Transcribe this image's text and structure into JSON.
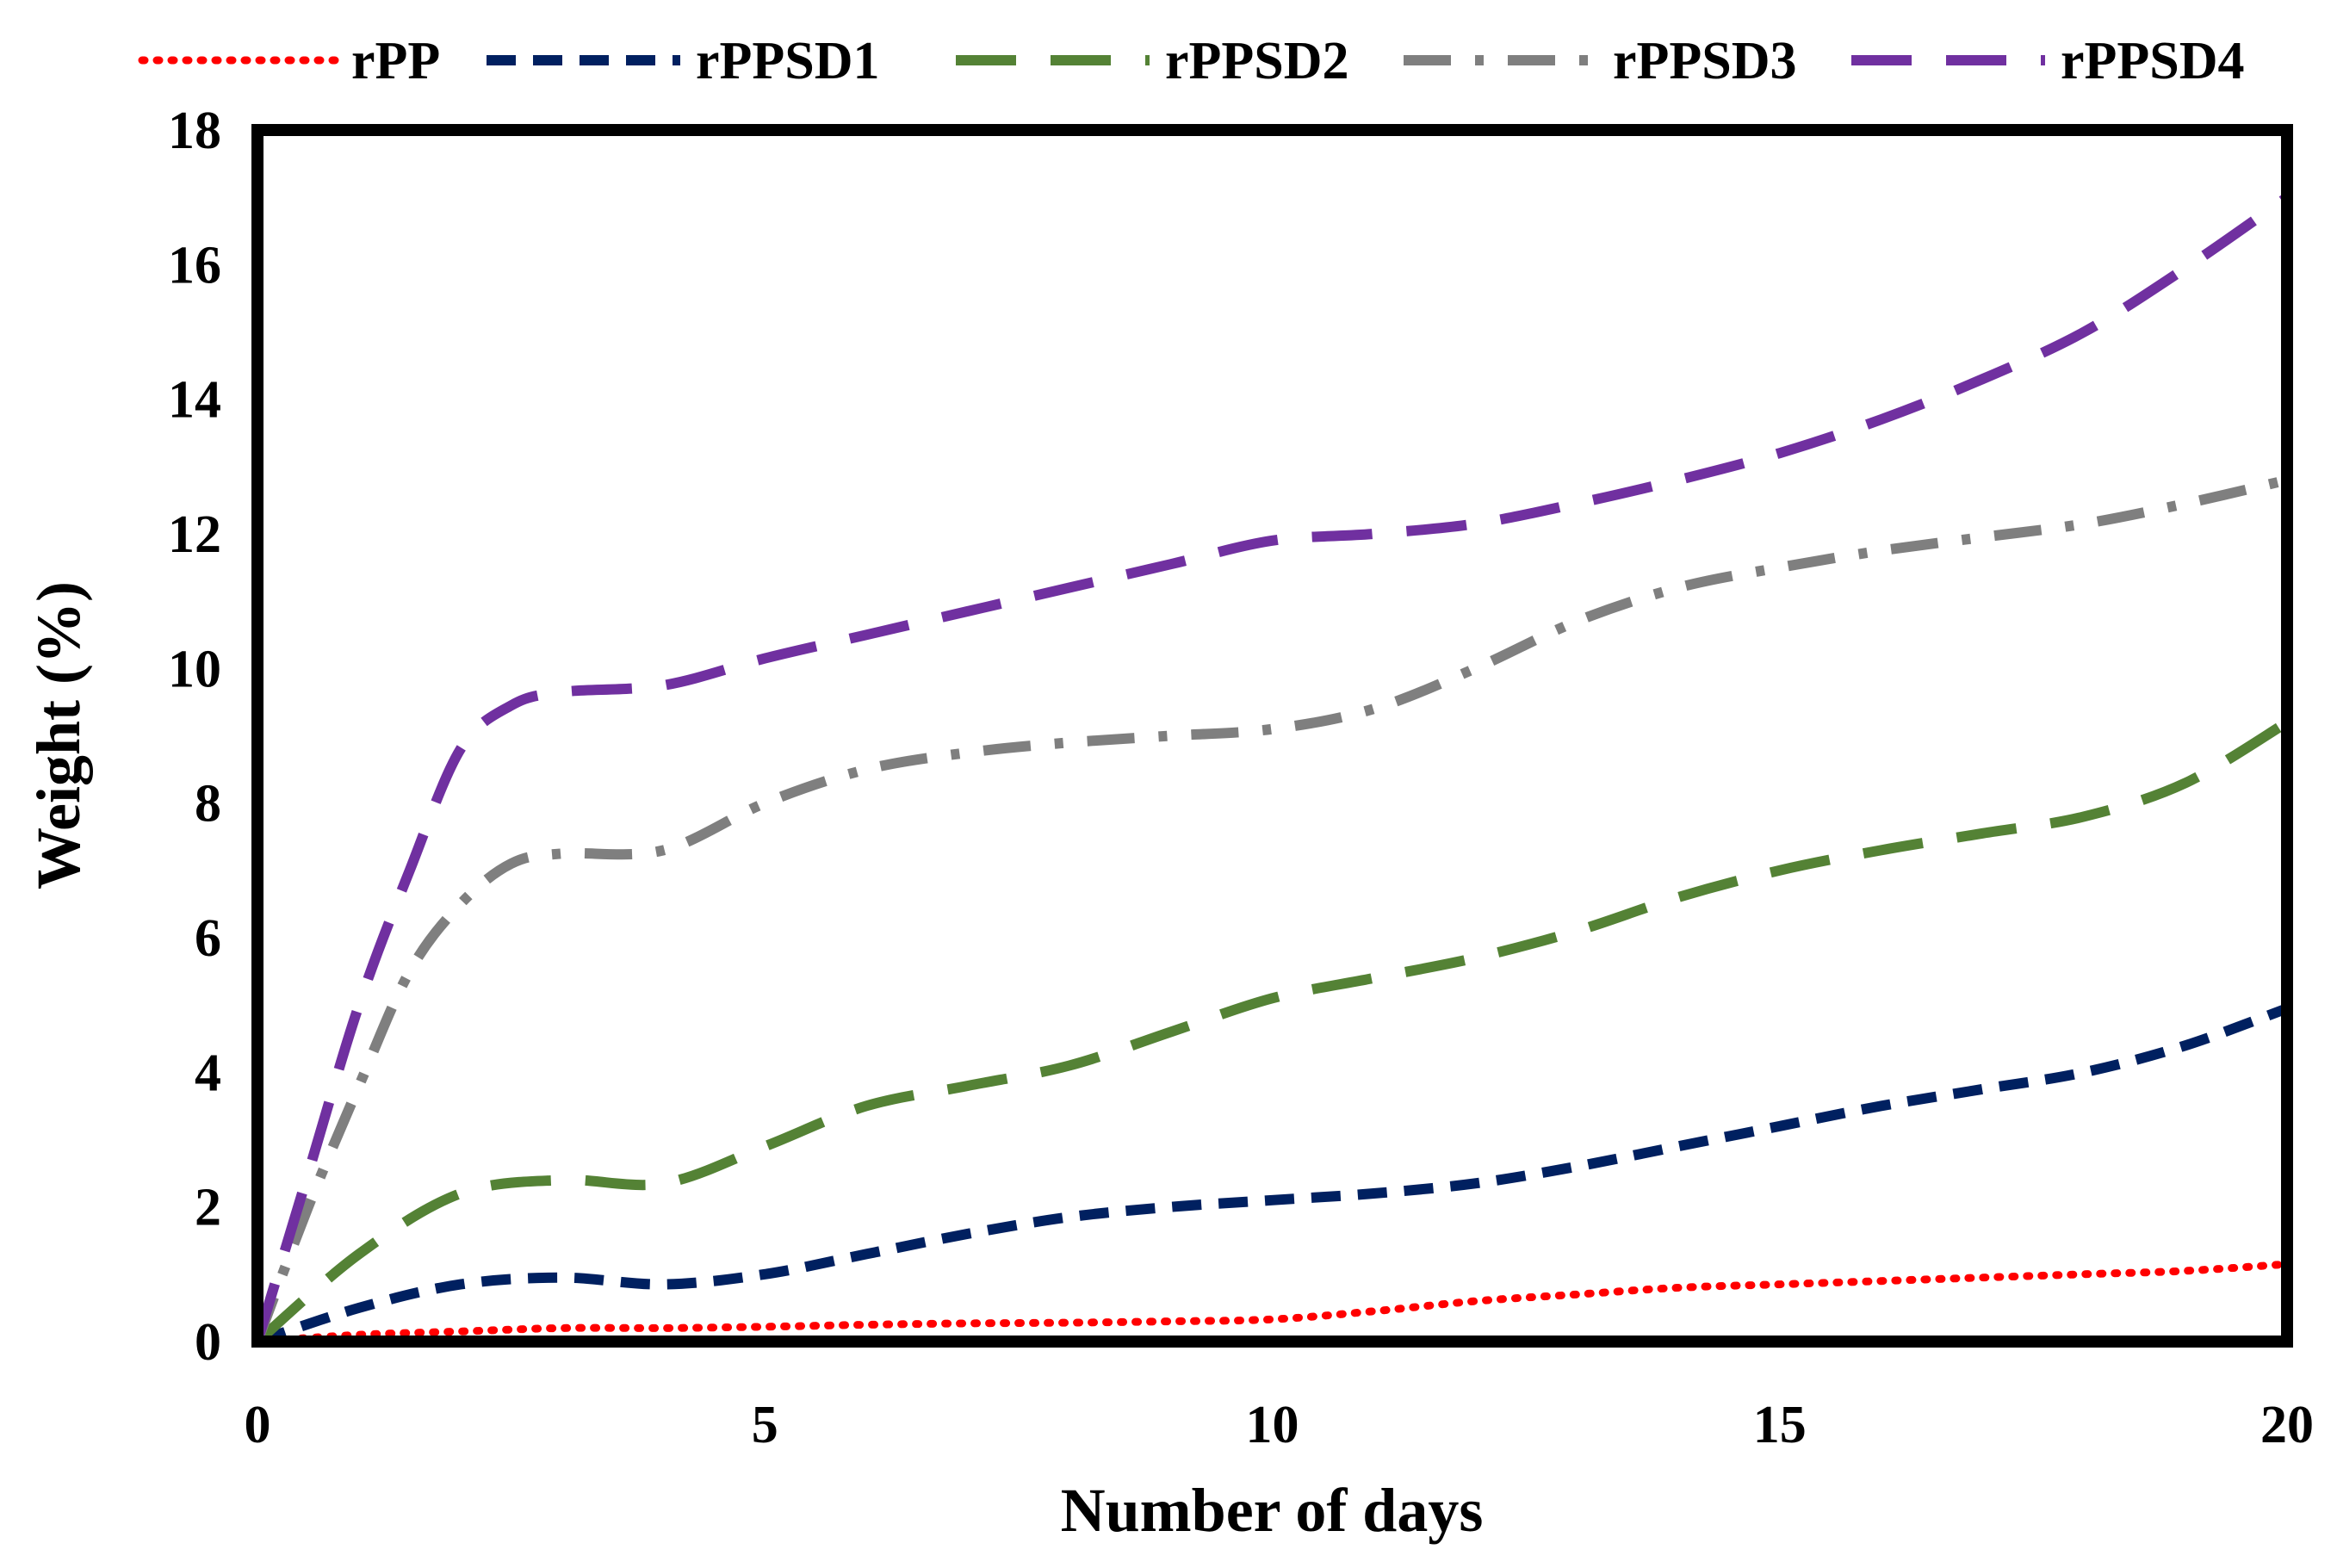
{
  "chart_data": {
    "type": "line",
    "title": "",
    "xlabel": "Number of days",
    "ylabel": "Weight (%)",
    "xlim": [
      0,
      20
    ],
    "ylim": [
      0,
      18
    ],
    "xticks": [
      0,
      5,
      10,
      15,
      20
    ],
    "yticks": [
      0,
      2,
      4,
      6,
      8,
      10,
      12,
      14,
      16,
      18
    ],
    "grid": false,
    "legend_position": "top",
    "series": [
      {
        "name": "rPP",
        "color": "#ff0000",
        "style": "dotted",
        "points": [
          [
            0,
            0
          ],
          [
            1,
            0.1
          ],
          [
            2,
            0.15
          ],
          [
            3,
            0.2
          ],
          [
            4,
            0.2
          ],
          [
            5,
            0.22
          ],
          [
            6,
            0.25
          ],
          [
            7,
            0.27
          ],
          [
            8,
            0.28
          ],
          [
            9,
            0.3
          ],
          [
            10,
            0.33
          ],
          [
            11,
            0.45
          ],
          [
            12,
            0.6
          ],
          [
            13,
            0.7
          ],
          [
            14,
            0.8
          ],
          [
            15,
            0.85
          ],
          [
            16,
            0.9
          ],
          [
            17,
            0.95
          ],
          [
            18,
            1.0
          ],
          [
            19,
            1.05
          ],
          [
            20,
            1.15
          ]
        ]
      },
      {
        "name": "rPPSD1",
        "color": "#002060",
        "style": "dashed",
        "points": [
          [
            0,
            0
          ],
          [
            1,
            0.5
          ],
          [
            2,
            0.85
          ],
          [
            3,
            0.95
          ],
          [
            4,
            0.85
          ],
          [
            5,
            1.0
          ],
          [
            6,
            1.3
          ],
          [
            7,
            1.6
          ],
          [
            8,
            1.85
          ],
          [
            9,
            2.0
          ],
          [
            10,
            2.1
          ],
          [
            11,
            2.2
          ],
          [
            12,
            2.35
          ],
          [
            13,
            2.6
          ],
          [
            14,
            2.9
          ],
          [
            15,
            3.2
          ],
          [
            16,
            3.5
          ],
          [
            17,
            3.75
          ],
          [
            18,
            4.0
          ],
          [
            19,
            4.4
          ],
          [
            20,
            4.95
          ]
        ]
      },
      {
        "name": "rPPSD2",
        "color": "#548235",
        "style": "long-dash",
        "points": [
          [
            0,
            0
          ],
          [
            1,
            1.3
          ],
          [
            2,
            2.2
          ],
          [
            3,
            2.4
          ],
          [
            4,
            2.35
          ],
          [
            5,
            2.9
          ],
          [
            6,
            3.5
          ],
          [
            7,
            3.8
          ],
          [
            8,
            4.1
          ],
          [
            9,
            4.6
          ],
          [
            10,
            5.1
          ],
          [
            11,
            5.4
          ],
          [
            12,
            5.7
          ],
          [
            13,
            6.1
          ],
          [
            14,
            6.6
          ],
          [
            15,
            7.0
          ],
          [
            16,
            7.3
          ],
          [
            17,
            7.55
          ],
          [
            18,
            7.8
          ],
          [
            19,
            8.3
          ],
          [
            20,
            9.2
          ]
        ]
      },
      {
        "name": "rPPSD3",
        "color": "#7f7f7f",
        "style": "dash-dot",
        "points": [
          [
            0,
            0
          ],
          [
            0.5,
            2.0
          ],
          [
            1,
            3.8
          ],
          [
            1.5,
            5.5
          ],
          [
            2,
            6.5
          ],
          [
            2.5,
            7.1
          ],
          [
            3,
            7.25
          ],
          [
            4,
            7.3
          ],
          [
            5,
            8.0
          ],
          [
            6,
            8.5
          ],
          [
            7,
            8.75
          ],
          [
            8,
            8.9
          ],
          [
            9,
            9.0
          ],
          [
            10,
            9.1
          ],
          [
            11,
            9.4
          ],
          [
            12,
            10.0
          ],
          [
            13,
            10.7
          ],
          [
            14,
            11.2
          ],
          [
            15,
            11.5
          ],
          [
            16,
            11.75
          ],
          [
            17,
            11.95
          ],
          [
            18,
            12.15
          ],
          [
            19,
            12.45
          ],
          [
            20,
            12.8
          ]
        ]
      },
      {
        "name": "rPPSD4",
        "color": "#7030a0",
        "style": "long-dash",
        "points": [
          [
            0,
            0
          ],
          [
            0.5,
            2.5
          ],
          [
            1,
            5.0
          ],
          [
            1.5,
            7.0
          ],
          [
            2,
            8.8
          ],
          [
            2.5,
            9.45
          ],
          [
            3,
            9.65
          ],
          [
            4,
            9.75
          ],
          [
            5,
            10.15
          ],
          [
            6,
            10.5
          ],
          [
            7,
            10.85
          ],
          [
            8,
            11.2
          ],
          [
            9,
            11.55
          ],
          [
            10,
            11.9
          ],
          [
            11,
            12.0
          ],
          [
            12,
            12.15
          ],
          [
            13,
            12.45
          ],
          [
            14,
            12.8
          ],
          [
            15,
            13.2
          ],
          [
            16,
            13.7
          ],
          [
            17,
            14.3
          ],
          [
            18,
            15.0
          ],
          [
            19,
            15.95
          ],
          [
            20,
            17.0
          ]
        ]
      }
    ]
  }
}
